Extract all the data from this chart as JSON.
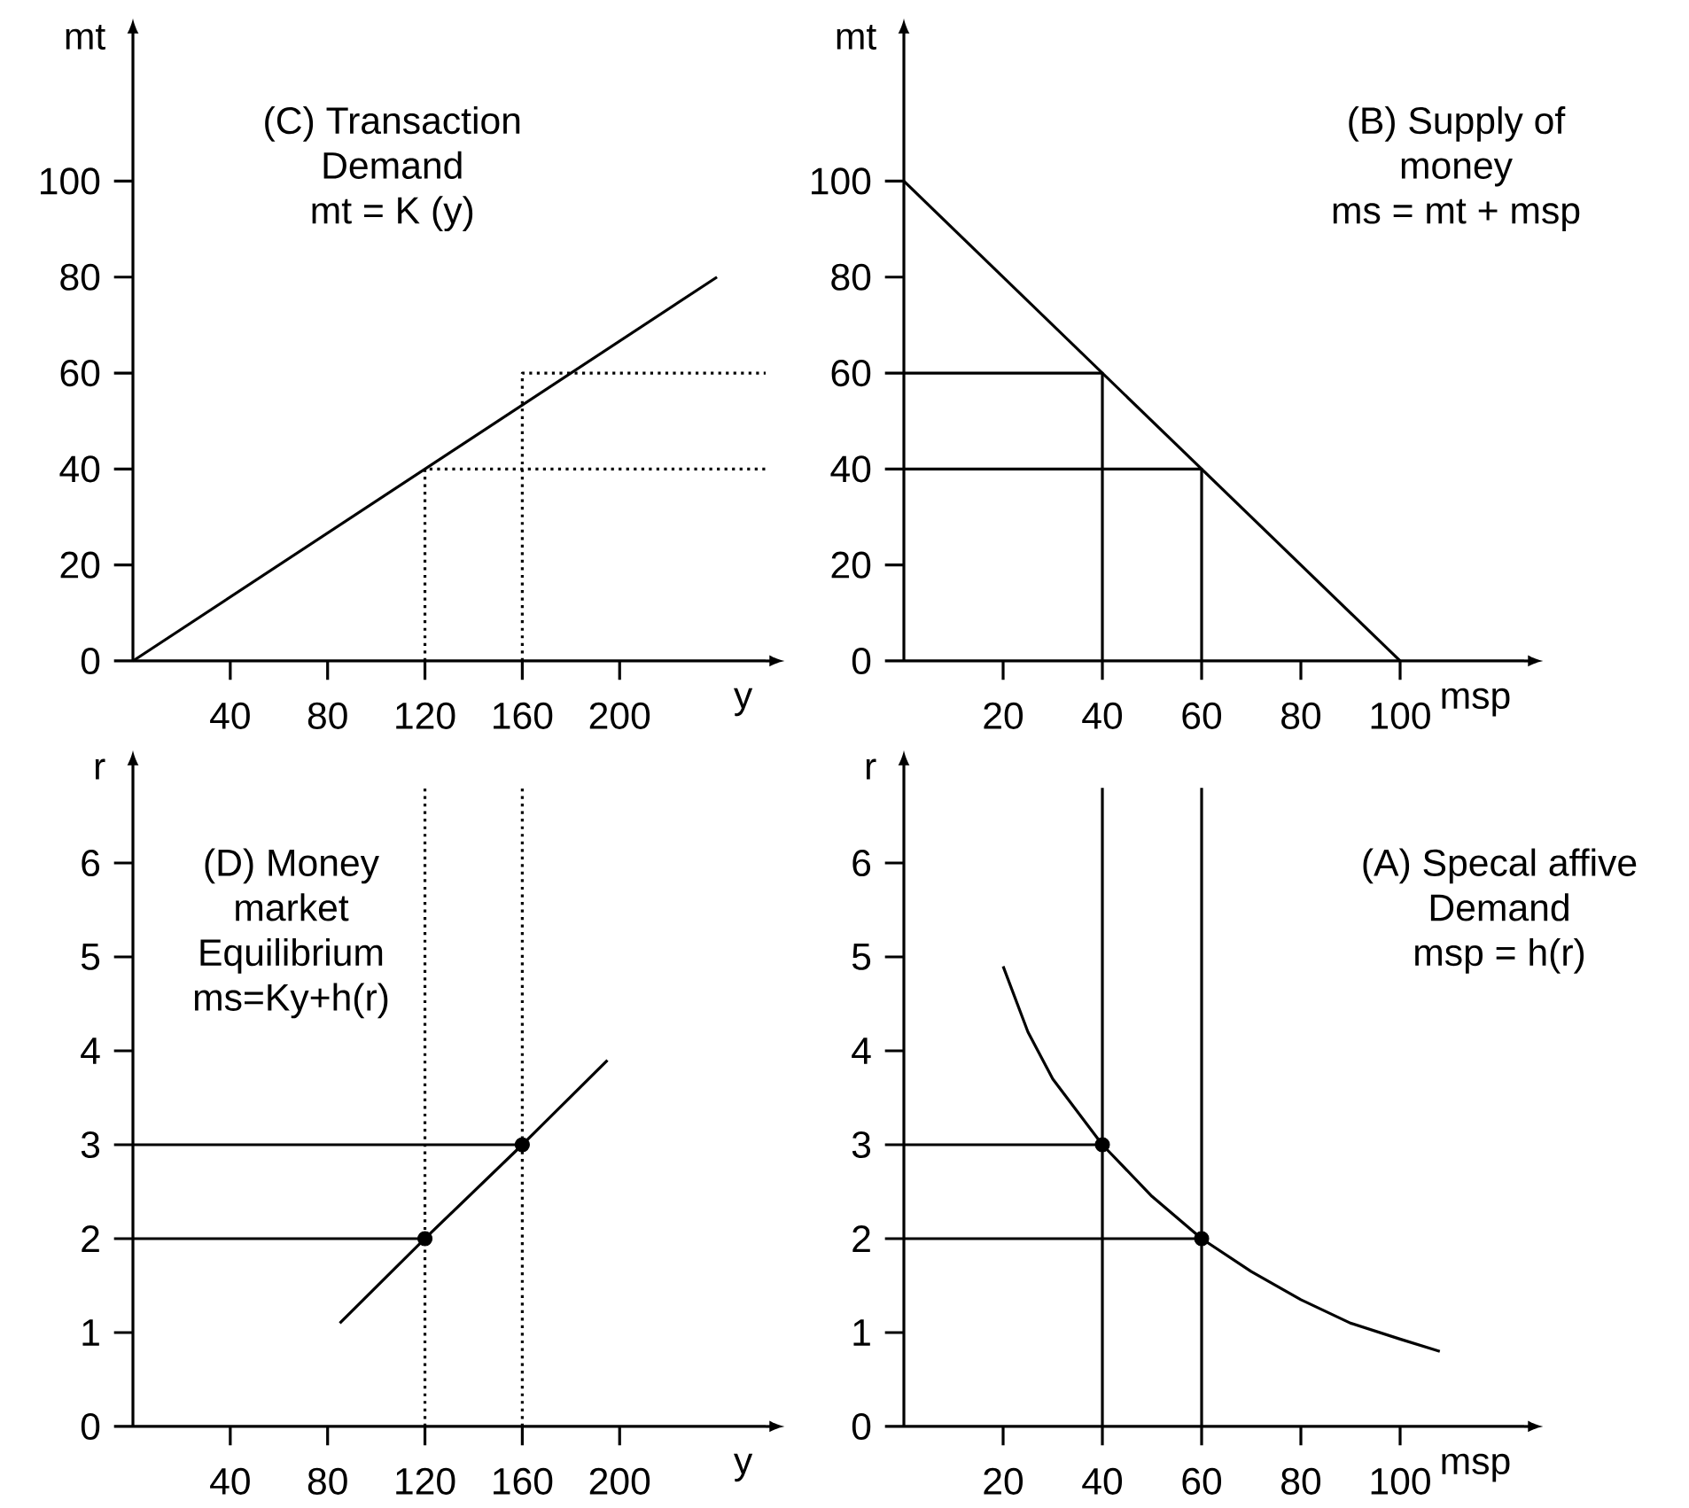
{
  "chart_data": [
    {
      "type": "line",
      "xlabel": "y",
      "ylabel": "mt",
      "xlim": [
        0,
        260
      ],
      "ylim": [
        0,
        130
      ],
      "xticks": [
        40,
        80,
        120,
        160,
        200
      ],
      "yticks": [
        0,
        20,
        40,
        60,
        80,
        100
      ],
      "annotations": [
        "(C) Transaction",
        "Demand",
        "mt = K (y)"
      ],
      "series": [
        {
          "type": "line",
          "color": "#000000",
          "line_style": "solid",
          "x": [
            0,
            240
          ],
          "values": [
            0,
            80
          ]
        },
        {
          "type": "line",
          "color": "#000000",
          "line_style": "dotted",
          "x": [
            120,
            120,
            260
          ],
          "values": [
            0,
            40,
            40
          ]
        },
        {
          "type": "line",
          "color": "#000000",
          "line_style": "dotted",
          "x": [
            160,
            160,
            260
          ],
          "values": [
            0,
            60,
            60
          ]
        }
      ]
    },
    {
      "type": "line",
      "xlabel": "msp",
      "ylabel": "mt",
      "xlim": [
        0,
        125
      ],
      "ylim": [
        0,
        130
      ],
      "xticks": [
        20,
        40,
        60,
        80,
        100
      ],
      "yticks": [
        0,
        20,
        40,
        60,
        80,
        100
      ],
      "annotations": [
        "(B) Supply of",
        "money",
        "ms = mt + msp"
      ],
      "series": [
        {
          "type": "line",
          "color": "#000000",
          "line_style": "solid",
          "x": [
            0,
            100
          ],
          "values": [
            100,
            0
          ]
        },
        {
          "type": "line",
          "color": "#000000",
          "line_style": "solid",
          "x": [
            0,
            40,
            40
          ],
          "values": [
            60,
            60,
            0
          ]
        },
        {
          "type": "line",
          "color": "#000000",
          "line_style": "solid",
          "x": [
            0,
            60,
            60
          ],
          "values": [
            40,
            40,
            0
          ]
        }
      ]
    },
    {
      "type": "line",
      "xlabel": "y",
      "ylabel": "r",
      "xlim": [
        0,
        260
      ],
      "ylim": [
        0,
        7
      ],
      "xticks": [
        40,
        80,
        120,
        160,
        200
      ],
      "yticks": [
        0,
        1,
        2,
        3,
        4,
        5,
        6
      ],
      "annotations": [
        "(D) Money",
        "market",
        "Equilibrium",
        "ms=Ky+h(r)"
      ],
      "series": [
        {
          "type": "line",
          "color": "#000000",
          "line_style": "dotted",
          "x": [
            120,
            120
          ],
          "values": [
            0,
            6.8
          ]
        },
        {
          "type": "line",
          "color": "#000000",
          "line_style": "dotted",
          "x": [
            160,
            160
          ],
          "values": [
            0,
            6.8
          ]
        },
        {
          "type": "line",
          "color": "#000000",
          "line_style": "solid",
          "x": [
            0,
            120
          ],
          "values": [
            2,
            2
          ]
        },
        {
          "type": "line",
          "color": "#000000",
          "line_style": "solid",
          "x": [
            0,
            160
          ],
          "values": [
            3,
            3
          ]
        },
        {
          "type": "line",
          "color": "#000000",
          "line_style": "solid",
          "x": [
            85,
            120,
            160,
            195
          ],
          "values": [
            1.1,
            2,
            3,
            3.9
          ]
        },
        {
          "type": "scatter",
          "color": "#000000",
          "marker": "circle",
          "x": [
            120,
            160
          ],
          "values": [
            2,
            3
          ]
        }
      ]
    },
    {
      "type": "line",
      "xlabel": "msp",
      "ylabel": "r",
      "xlim": [
        0,
        125
      ],
      "ylim": [
        0,
        7
      ],
      "xticks": [
        20,
        40,
        60,
        80,
        100
      ],
      "yticks": [
        0,
        1,
        2,
        3,
        4,
        5,
        6
      ],
      "annotations": [
        "(A) Specal affive",
        "Demand",
        "msp = h(r)"
      ],
      "series": [
        {
          "type": "line",
          "color": "#000000",
          "line_style": "solid",
          "x": [
            40,
            40
          ],
          "values": [
            0,
            6.8
          ]
        },
        {
          "type": "line",
          "color": "#000000",
          "line_style": "solid",
          "x": [
            60,
            60
          ],
          "values": [
            0,
            6.8
          ]
        },
        {
          "type": "line",
          "color": "#000000",
          "line_style": "solid",
          "x": [
            0,
            40
          ],
          "values": [
            3,
            3
          ]
        },
        {
          "type": "line",
          "color": "#000000",
          "line_style": "solid",
          "x": [
            0,
            60
          ],
          "values": [
            2,
            2
          ]
        },
        {
          "type": "line",
          "color": "#000000",
          "line_style": "solid",
          "x": [
            20,
            25,
            30,
            40,
            50,
            60,
            70,
            80,
            90,
            100,
            108
          ],
          "values": [
            4.9,
            4.2,
            3.7,
            3,
            2.45,
            2,
            1.65,
            1.35,
            1.1,
            0.93,
            0.8
          ]
        },
        {
          "type": "scatter",
          "color": "#000000",
          "marker": "circle",
          "x": [
            40,
            60
          ],
          "values": [
            3,
            2
          ]
        }
      ]
    }
  ]
}
